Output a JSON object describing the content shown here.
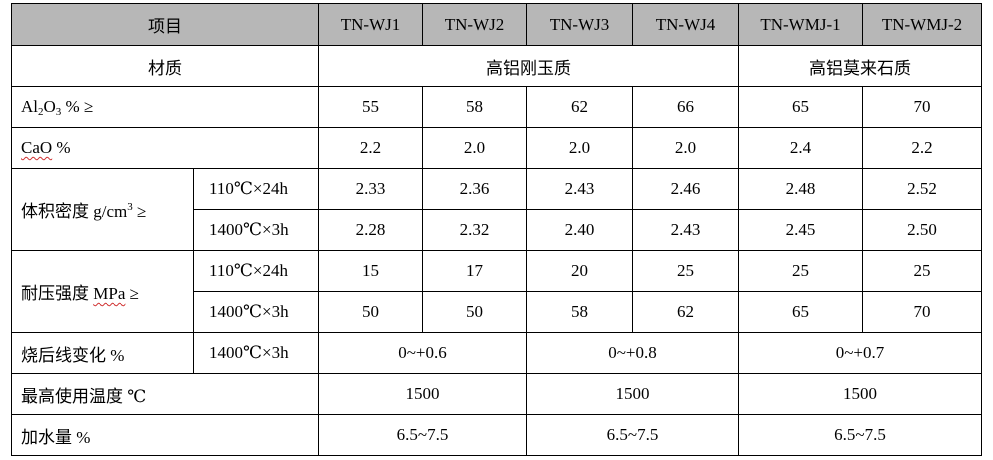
{
  "header": {
    "item_label": "项目",
    "columns": [
      "TN-WJ1",
      "TN-WJ2",
      "TN-WJ3",
      "TN-WJ4",
      "TN-WMJ-1",
      "TN-WMJ-2"
    ]
  },
  "material": {
    "label": "材质",
    "group1": "高铝刚玉质",
    "group2": "高铝莫来石质"
  },
  "al2o3": {
    "pre": "Al",
    "sub1": "2",
    "mid": "O",
    "sub2": "3",
    "post": " % ≥",
    "values": [
      "55",
      "58",
      "62",
      "66",
      "65",
      "70"
    ]
  },
  "cao": {
    "label": "CaO",
    "unit": " %",
    "values": [
      "2.2",
      "2.0",
      "2.0",
      "2.0",
      "2.4",
      "2.2"
    ]
  },
  "density": {
    "label_pre": "体积密度  g/cm",
    "label_sup": "3",
    "label_post": " ≥",
    "cond1": "110℃×24h",
    "cond2": "1400℃×3h",
    "values1": [
      "2.33",
      "2.36",
      "2.43",
      "2.46",
      "2.48",
      "2.52"
    ],
    "values2": [
      "2.28",
      "2.32",
      "2.40",
      "2.43",
      "2.45",
      "2.50"
    ]
  },
  "strength": {
    "label_pre": "耐压强度 ",
    "label_unit": "MPa",
    "label_post": " ≥",
    "cond1": "110℃×24h",
    "cond2": "1400℃×3h",
    "values1": [
      "15",
      "17",
      "20",
      "25",
      "25",
      "25"
    ],
    "values2": [
      "50",
      "50",
      "58",
      "62",
      "65",
      "70"
    ]
  },
  "linear_change": {
    "label": "烧后线变化  %",
    "cond": "1400℃×3h",
    "values": [
      "0~+0.6",
      "0~+0.8",
      "0~+0.7"
    ]
  },
  "max_temp": {
    "label": "最高使用温度  ℃",
    "values": [
      "1500",
      "1500",
      "1500"
    ]
  },
  "water": {
    "label": "加水量  %",
    "values": [
      "6.5~7.5",
      "6.5~7.5",
      "6.5~7.5"
    ]
  }
}
